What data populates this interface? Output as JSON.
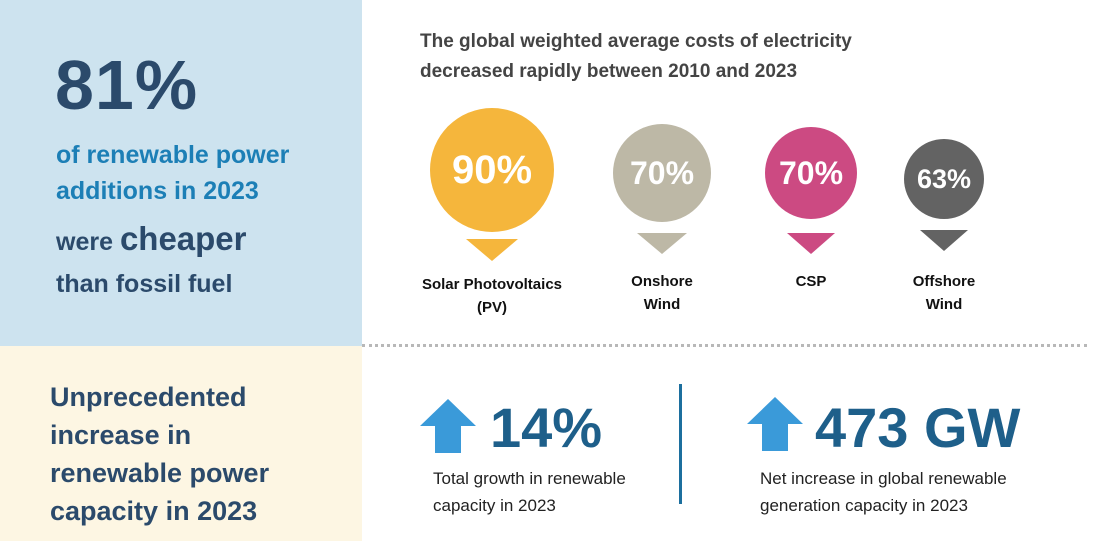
{
  "top_left": {
    "percent": "81%",
    "line1": "of renewable power",
    "line2": "additions in 2023",
    "line3_prefix": "were ",
    "line3_emphasis": "cheaper",
    "line4": "than fossil fuel"
  },
  "bottom_left": {
    "line1": "Unprecedented",
    "line2": "increase in",
    "line3": "renewable power",
    "line4": "capacity in 2023"
  },
  "headline": {
    "line1": "The global weighted average costs of electricity",
    "line2": "decreased rapidly between 2010 and 2023"
  },
  "technologies": [
    {
      "value": "90%",
      "label_line1": "Solar Photovoltaics",
      "label_line2": "(PV)",
      "color": "#f5b63c"
    },
    {
      "value": "70%",
      "label_line1": "Onshore",
      "label_line2": "Wind",
      "color": "#bdb8a6"
    },
    {
      "value": "70%",
      "label_line1": "CSP",
      "label_line2": "",
      "color": "#cc4a82"
    },
    {
      "value": "63%",
      "label_line1": "Offshore",
      "label_line2": "Wind",
      "color": "#636363"
    }
  ],
  "stats": [
    {
      "value": "14%",
      "desc_line1": "Total growth in renewable",
      "desc_line2": "capacity in 2023",
      "icon": "up-arrow-icon"
    },
    {
      "value": "473 GW",
      "desc_line1": "Net increase in global renewable",
      "desc_line2": "generation capacity in 2023",
      "icon": "up-arrow-icon"
    }
  ],
  "colors": {
    "panel_blue": "#cde3ef",
    "panel_cream": "#fdf6e3",
    "navy": "#2b4a6b",
    "accent_blue": "#1c7fb6",
    "arrow_blue": "#3a9ad9"
  }
}
